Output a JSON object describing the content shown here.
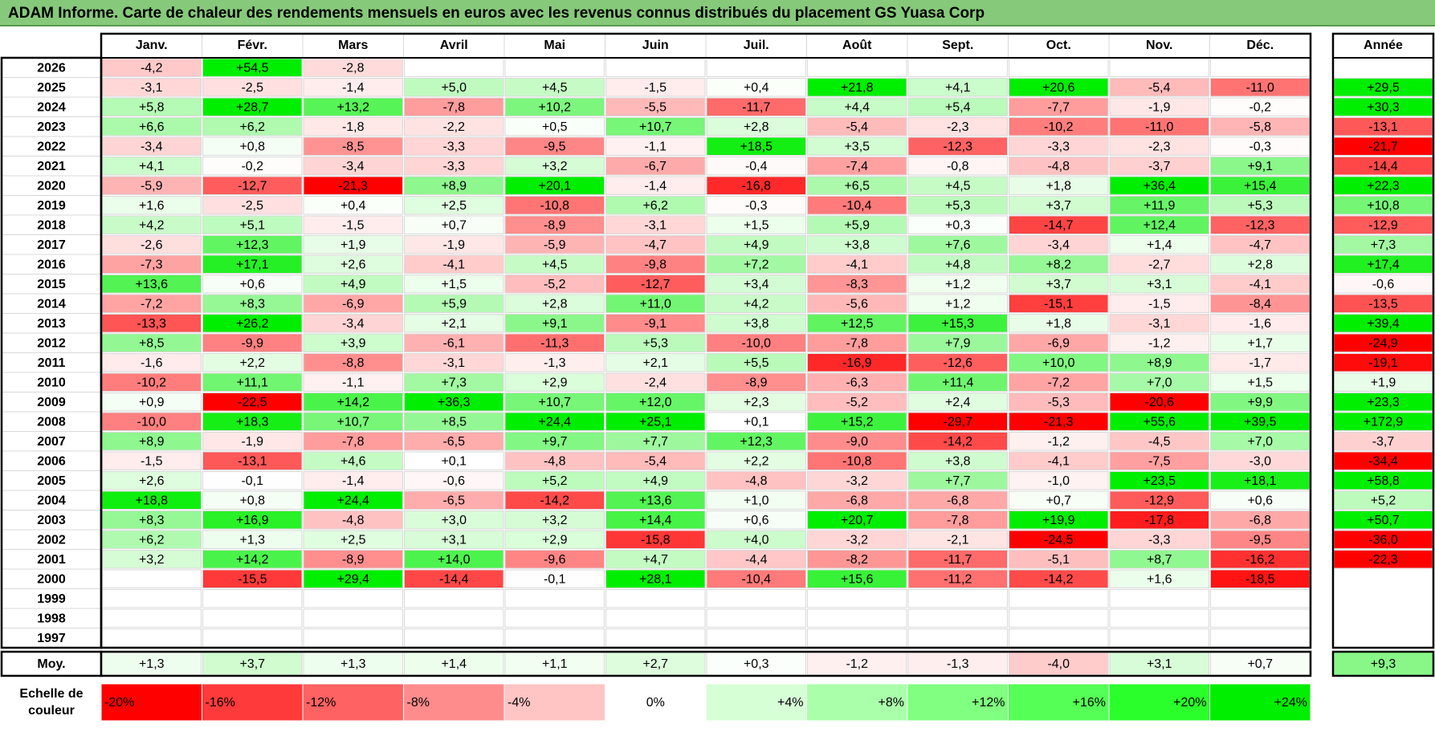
{
  "title": "ADAM Informe. Carte de chaleur des rendements mensuels en euros avec les revenus connus distribués du placement GS Yuasa Corp",
  "chart_data": {
    "type": "heatmap",
    "title": "ADAM Informe. Carte de chaleur des rendements mensuels en euros avec les revenus connus distribués du placement GS Yuasa Corp",
    "months": [
      "Janv.",
      "Févr.",
      "Mars",
      "Avril",
      "Mai",
      "Juin",
      "Juil.",
      "Août",
      "Sept.",
      "Oct.",
      "Nov.",
      "Déc."
    ],
    "year_header": "Année",
    "rows": [
      {
        "year": "2026",
        "values": [
          "-4,2",
          "+54,5",
          "-2,8",
          "",
          "",
          "",
          "",
          "",
          "",
          "",
          "",
          ""
        ],
        "annual": ""
      },
      {
        "year": "2025",
        "values": [
          "-3,1",
          "-2,5",
          "-1,4",
          "+5,0",
          "+4,5",
          "-1,5",
          "+0,4",
          "+21,8",
          "+4,1",
          "+20,6",
          "-5,4",
          "-11,0"
        ],
        "annual": "+29,5"
      },
      {
        "year": "2024",
        "values": [
          "+5,8",
          "+28,7",
          "+13,2",
          "-7,8",
          "+10,2",
          "-5,5",
          "-11,7",
          "+4,4",
          "+5,4",
          "-7,7",
          "-1,9",
          "-0,2"
        ],
        "annual": "+30,3"
      },
      {
        "year": "2023",
        "values": [
          "+6,6",
          "+6,2",
          "-1,8",
          "-2,2",
          "+0,5",
          "+10,7",
          "+2,8",
          "-5,4",
          "-2,3",
          "-10,2",
          "-11,0",
          "-5,8"
        ],
        "annual": "-13,1"
      },
      {
        "year": "2022",
        "values": [
          "-3,4",
          "+0,8",
          "-8,5",
          "-3,3",
          "-9,5",
          "-1,1",
          "+18,5",
          "+3,5",
          "-12,3",
          "-3,3",
          "-2,3",
          "-0,3"
        ],
        "annual": "-21,7"
      },
      {
        "year": "2021",
        "values": [
          "+4,1",
          "-0,2",
          "-3,4",
          "-3,3",
          "+3,2",
          "-6,7",
          "-0,4",
          "-7,4",
          "-0,8",
          "-4,8",
          "-3,7",
          "+9,1"
        ],
        "annual": "-14,4"
      },
      {
        "year": "2020",
        "values": [
          "-5,9",
          "-12,7",
          "-21,3",
          "+8,9",
          "+20,1",
          "-1,4",
          "-16,8",
          "+6,5",
          "+4,5",
          "+1,8",
          "+36,4",
          "+15,4"
        ],
        "annual": "+22,3"
      },
      {
        "year": "2019",
        "values": [
          "+1,6",
          "-2,5",
          "+0,4",
          "+2,5",
          "-10,8",
          "+6,2",
          "-0,3",
          "-10,4",
          "+5,3",
          "+3,7",
          "+11,9",
          "+5,3"
        ],
        "annual": "+10,8"
      },
      {
        "year": "2018",
        "values": [
          "+4,2",
          "+5,1",
          "-1,5",
          "+0,7",
          "-8,9",
          "-3,1",
          "+1,5",
          "+5,9",
          "+0,3",
          "-14,7",
          "+12,4",
          "-12,3"
        ],
        "annual": "-12,9"
      },
      {
        "year": "2017",
        "values": [
          "-2,6",
          "+12,3",
          "+1,9",
          "-1,9",
          "-5,9",
          "-4,7",
          "+4,9",
          "+3,8",
          "+7,6",
          "-3,4",
          "+1,4",
          "-4,7"
        ],
        "annual": "+7,3"
      },
      {
        "year": "2016",
        "values": [
          "-7,3",
          "+17,1",
          "+2,6",
          "-4,1",
          "+4,5",
          "-9,8",
          "+7,2",
          "-4,1",
          "+4,8",
          "+8,2",
          "-2,7",
          "+2,8"
        ],
        "annual": "+17,4"
      },
      {
        "year": "2015",
        "values": [
          "+13,6",
          "+0,6",
          "+4,9",
          "+1,5",
          "-5,2",
          "-12,7",
          "+3,4",
          "-8,3",
          "+1,2",
          "+3,7",
          "+3,1",
          "-4,1"
        ],
        "annual": "-0,6"
      },
      {
        "year": "2014",
        "values": [
          "-7,2",
          "+8,3",
          "-6,9",
          "+5,9",
          "+2,8",
          "+11,0",
          "+4,2",
          "-5,6",
          "+1,2",
          "-15,1",
          "-1,5",
          "-8,4"
        ],
        "annual": "-13,5"
      },
      {
        "year": "2013",
        "values": [
          "-13,3",
          "+26,2",
          "-3,4",
          "+2,1",
          "+9,1",
          "-9,1",
          "+3,8",
          "+12,5",
          "+15,3",
          "+1,8",
          "-3,1",
          "-1,6"
        ],
        "annual": "+39,4"
      },
      {
        "year": "2012",
        "values": [
          "+8,5",
          "-9,9",
          "+3,9",
          "-6,1",
          "-11,3",
          "+5,3",
          "-10,0",
          "-7,8",
          "+7,9",
          "-6,9",
          "-1,2",
          "+1,7"
        ],
        "annual": "-24,9"
      },
      {
        "year": "2011",
        "values": [
          "-1,6",
          "+2,2",
          "-8,8",
          "-3,1",
          "-1,3",
          "+2,1",
          "+5,5",
          "-16,9",
          "-12,6",
          "+10,0",
          "+8,9",
          "-1,7"
        ],
        "annual": "-19,1"
      },
      {
        "year": "2010",
        "values": [
          "-10,2",
          "+11,1",
          "-1,1",
          "+7,3",
          "+2,9",
          "-2,4",
          "-8,9",
          "-6,3",
          "+11,4",
          "-7,2",
          "+7,0",
          "+1,5"
        ],
        "annual": "+1,9"
      },
      {
        "year": "2009",
        "values": [
          "+0,9",
          "-22,5",
          "+14,2",
          "+36,3",
          "+10,7",
          "+12,0",
          "+2,3",
          "-5,2",
          "+2,4",
          "-5,3",
          "-20,6",
          "+9,9"
        ],
        "annual": "+23,3"
      },
      {
        "year": "2008",
        "values": [
          "-10,0",
          "+18,3",
          "+10,7",
          "+8,5",
          "+24,4",
          "+25,1",
          "+0,1",
          "+15,2",
          "-29,7",
          "-21,3",
          "+55,6",
          "+39,5"
        ],
        "annual": "+172,9"
      },
      {
        "year": "2007",
        "values": [
          "+8,9",
          "-1,9",
          "-7,8",
          "-6,5",
          "+9,7",
          "+7,7",
          "+12,3",
          "-9,0",
          "-14,2",
          "-1,2",
          "-4,5",
          "+7,0"
        ],
        "annual": "-3,7"
      },
      {
        "year": "2006",
        "values": [
          "-1,5",
          "-13,1",
          "+4,6",
          "+0,1",
          "-4,8",
          "-5,4",
          "+2,2",
          "-10,8",
          "+3,8",
          "-4,1",
          "-7,5",
          "-3,0"
        ],
        "annual": "-34,4"
      },
      {
        "year": "2005",
        "values": [
          "+2,6",
          "-0,1",
          "-1,4",
          "-0,6",
          "+5,2",
          "+4,9",
          "-4,8",
          "-3,2",
          "+7,7",
          "-1,0",
          "+23,5",
          "+18,1"
        ],
        "annual": "+58,8"
      },
      {
        "year": "2004",
        "values": [
          "+18,8",
          "+0,8",
          "+24,4",
          "-6,5",
          "-14,2",
          "+13,6",
          "+1,0",
          "-6,8",
          "-6,8",
          "+0,7",
          "-12,9",
          "+0,6"
        ],
        "annual": "+5,2"
      },
      {
        "year": "2003",
        "values": [
          "+8,3",
          "+16,9",
          "-4,8",
          "+3,0",
          "+3,2",
          "+14,4",
          "+0,6",
          "+20,7",
          "-7,8",
          "+19,9",
          "-17,8",
          "-6,8"
        ],
        "annual": "+50,7"
      },
      {
        "year": "2002",
        "values": [
          "+6,2",
          "+1,3",
          "+2,5",
          "+3,1",
          "+2,9",
          "-15,8",
          "+4,0",
          "-3,2",
          "-2,1",
          "-24,5",
          "-3,3",
          "-9,5"
        ],
        "annual": "-36,0"
      },
      {
        "year": "2001",
        "values": [
          "+3,2",
          "+14,2",
          "-8,9",
          "+14,0",
          "-9,6",
          "+4,7",
          "-4,4",
          "-8,2",
          "-11,7",
          "-5,1",
          "+8,7",
          "-16,2"
        ],
        "annual": "-22,3"
      },
      {
        "year": "2000",
        "values": [
          "",
          "-15,5",
          "+29,4",
          "-14,4",
          "-0,1",
          "+28,1",
          "-10,4",
          "+15,6",
          "-11,2",
          "-14,2",
          "+1,6",
          "-18,5"
        ],
        "annual": ""
      },
      {
        "year": "1999",
        "values": [
          "",
          "",
          "",
          "",
          "",
          "",
          "",
          "",
          "",
          "",
          "",
          ""
        ],
        "annual": ""
      },
      {
        "year": "1998",
        "values": [
          "",
          "",
          "",
          "",
          "",
          "",
          "",
          "",
          "",
          "",
          "",
          ""
        ],
        "annual": ""
      },
      {
        "year": "1997",
        "values": [
          "",
          "",
          "",
          "",
          "",
          "",
          "",
          "",
          "",
          "",
          "",
          ""
        ],
        "annual": ""
      }
    ],
    "average": {
      "label": "Moy.",
      "values": [
        "+1,3",
        "+3,7",
        "+1,3",
        "+1,4",
        "+1,1",
        "+2,7",
        "+0,3",
        "-1,2",
        "-1,3",
        "-4,0",
        "+3,1",
        "+0,7"
      ],
      "annual": "+9,3"
    },
    "scale": {
      "label_line1": "Echelle de",
      "label_line2": "couleur",
      "labels": [
        "-20%",
        "-16%",
        "-12%",
        "-8%",
        "-4%",
        "0%",
        "+4%",
        "+8%",
        "+12%",
        "+16%",
        "+20%",
        "+24%"
      ],
      "colors": [
        "#ff0000",
        "#ff3a3a",
        "#ff6262",
        "#ff8c8c",
        "#ffc4c4",
        "#ffffff",
        "#d6ffd6",
        "#aaffaa",
        "#80ff80",
        "#55ff55",
        "#2bff2b",
        "#00ee00"
      ]
    },
    "color_stops": {
      "negative": "#ff0000",
      "neutral": "#ffffff",
      "positive": "#00ee00"
    }
  }
}
